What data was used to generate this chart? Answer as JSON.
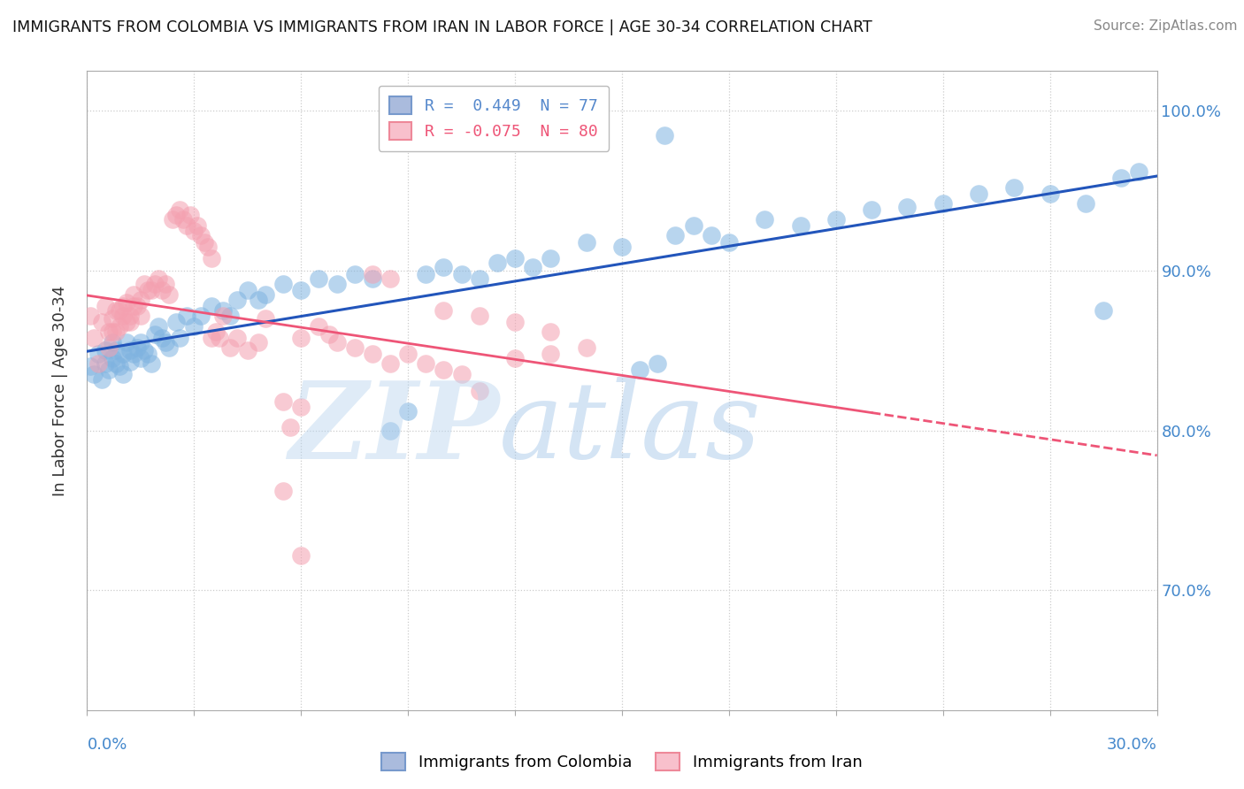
{
  "title": "IMMIGRANTS FROM COLOMBIA VS IMMIGRANTS FROM IRAN IN LABOR FORCE | AGE 30-34 CORRELATION CHART",
  "source": "Source: ZipAtlas.com",
  "ylabel": "In Labor Force | Age 30-34",
  "xmin": 0.0,
  "xmax": 0.3,
  "ymin": 0.625,
  "ymax": 1.025,
  "right_yticks": [
    0.7,
    0.8,
    0.9,
    1.0
  ],
  "right_yticklabels": [
    "70.0%",
    "80.0%",
    "90.0%",
    "100.0%"
  ],
  "colombia_color": "#7fb3e0",
  "iran_color": "#f4a0b0",
  "trendline_colombia_color": "#2255bb",
  "trendline_iran_color": "#ee5577",
  "colombia_scatter": [
    [
      0.001,
      0.84
    ],
    [
      0.002,
      0.835
    ],
    [
      0.003,
      0.848
    ],
    [
      0.004,
      0.832
    ],
    [
      0.005,
      0.85
    ],
    [
      0.005,
      0.842
    ],
    [
      0.006,
      0.838
    ],
    [
      0.007,
      0.855
    ],
    [
      0.007,
      0.845
    ],
    [
      0.008,
      0.85
    ],
    [
      0.008,
      0.842
    ],
    [
      0.009,
      0.84
    ],
    [
      0.01,
      0.835
    ],
    [
      0.01,
      0.848
    ],
    [
      0.011,
      0.855
    ],
    [
      0.012,
      0.85
    ],
    [
      0.012,
      0.843
    ],
    [
      0.013,
      0.848
    ],
    [
      0.014,
      0.852
    ],
    [
      0.015,
      0.855
    ],
    [
      0.015,
      0.845
    ],
    [
      0.016,
      0.85
    ],
    [
      0.017,
      0.848
    ],
    [
      0.018,
      0.842
    ],
    [
      0.019,
      0.86
    ],
    [
      0.02,
      0.865
    ],
    [
      0.021,
      0.858
    ],
    [
      0.022,
      0.855
    ],
    [
      0.023,
      0.852
    ],
    [
      0.025,
      0.868
    ],
    [
      0.026,
      0.858
    ],
    [
      0.028,
      0.872
    ],
    [
      0.03,
      0.865
    ],
    [
      0.032,
      0.872
    ],
    [
      0.035,
      0.878
    ],
    [
      0.038,
      0.875
    ],
    [
      0.04,
      0.872
    ],
    [
      0.042,
      0.882
    ],
    [
      0.045,
      0.888
    ],
    [
      0.048,
      0.882
    ],
    [
      0.05,
      0.885
    ],
    [
      0.055,
      0.892
    ],
    [
      0.06,
      0.888
    ],
    [
      0.065,
      0.895
    ],
    [
      0.07,
      0.892
    ],
    [
      0.075,
      0.898
    ],
    [
      0.08,
      0.895
    ],
    [
      0.085,
      0.8
    ],
    [
      0.09,
      0.812
    ],
    [
      0.095,
      0.898
    ],
    [
      0.1,
      0.902
    ],
    [
      0.105,
      0.898
    ],
    [
      0.11,
      0.895
    ],
    [
      0.115,
      0.905
    ],
    [
      0.12,
      0.908
    ],
    [
      0.125,
      0.902
    ],
    [
      0.13,
      0.908
    ],
    [
      0.14,
      0.918
    ],
    [
      0.15,
      0.915
    ],
    [
      0.155,
      0.838
    ],
    [
      0.16,
      0.842
    ],
    [
      0.165,
      0.922
    ],
    [
      0.17,
      0.928
    ],
    [
      0.175,
      0.922
    ],
    [
      0.18,
      0.918
    ],
    [
      0.19,
      0.932
    ],
    [
      0.2,
      0.928
    ],
    [
      0.21,
      0.932
    ],
    [
      0.22,
      0.938
    ],
    [
      0.23,
      0.94
    ],
    [
      0.24,
      0.942
    ],
    [
      0.25,
      0.948
    ],
    [
      0.26,
      0.952
    ],
    [
      0.27,
      0.948
    ],
    [
      0.28,
      0.942
    ],
    [
      0.162,
      0.985
    ],
    [
      0.285,
      0.875
    ],
    [
      0.29,
      0.958
    ],
    [
      0.295,
      0.962
    ]
  ],
  "iran_scatter": [
    [
      0.001,
      0.872
    ],
    [
      0.002,
      0.858
    ],
    [
      0.003,
      0.842
    ],
    [
      0.004,
      0.868
    ],
    [
      0.005,
      0.878
    ],
    [
      0.006,
      0.862
    ],
    [
      0.006,
      0.852
    ],
    [
      0.007,
      0.87
    ],
    [
      0.007,
      0.862
    ],
    [
      0.008,
      0.875
    ],
    [
      0.008,
      0.862
    ],
    [
      0.009,
      0.875
    ],
    [
      0.009,
      0.865
    ],
    [
      0.01,
      0.872
    ],
    [
      0.01,
      0.878
    ],
    [
      0.011,
      0.868
    ],
    [
      0.011,
      0.88
    ],
    [
      0.012,
      0.872
    ],
    [
      0.012,
      0.868
    ],
    [
      0.013,
      0.878
    ],
    [
      0.013,
      0.885
    ],
    [
      0.014,
      0.878
    ],
    [
      0.015,
      0.882
    ],
    [
      0.015,
      0.872
    ],
    [
      0.016,
      0.892
    ],
    [
      0.017,
      0.888
    ],
    [
      0.018,
      0.888
    ],
    [
      0.019,
      0.892
    ],
    [
      0.02,
      0.895
    ],
    [
      0.021,
      0.888
    ],
    [
      0.022,
      0.892
    ],
    [
      0.023,
      0.885
    ],
    [
      0.024,
      0.932
    ],
    [
      0.025,
      0.935
    ],
    [
      0.026,
      0.938
    ],
    [
      0.027,
      0.932
    ],
    [
      0.028,
      0.928
    ],
    [
      0.029,
      0.935
    ],
    [
      0.03,
      0.925
    ],
    [
      0.031,
      0.928
    ],
    [
      0.032,
      0.922
    ],
    [
      0.033,
      0.918
    ],
    [
      0.034,
      0.915
    ],
    [
      0.035,
      0.908
    ],
    [
      0.035,
      0.858
    ],
    [
      0.036,
      0.862
    ],
    [
      0.037,
      0.858
    ],
    [
      0.038,
      0.872
    ],
    [
      0.04,
      0.852
    ],
    [
      0.042,
      0.858
    ],
    [
      0.045,
      0.85
    ],
    [
      0.048,
      0.855
    ],
    [
      0.05,
      0.87
    ],
    [
      0.055,
      0.818
    ],
    [
      0.057,
      0.802
    ],
    [
      0.06,
      0.815
    ],
    [
      0.055,
      0.762
    ],
    [
      0.06,
      0.722
    ],
    [
      0.06,
      0.858
    ],
    [
      0.065,
      0.865
    ],
    [
      0.068,
      0.86
    ],
    [
      0.07,
      0.855
    ],
    [
      0.075,
      0.852
    ],
    [
      0.08,
      0.848
    ],
    [
      0.085,
      0.842
    ],
    [
      0.09,
      0.848
    ],
    [
      0.095,
      0.842
    ],
    [
      0.1,
      0.838
    ],
    [
      0.105,
      0.835
    ],
    [
      0.11,
      0.825
    ],
    [
      0.12,
      0.845
    ],
    [
      0.13,
      0.848
    ],
    [
      0.14,
      0.852
    ],
    [
      0.1,
      0.875
    ],
    [
      0.11,
      0.872
    ],
    [
      0.12,
      0.868
    ],
    [
      0.13,
      0.862
    ],
    [
      0.08,
      0.898
    ],
    [
      0.085,
      0.895
    ]
  ],
  "background_color": "#ffffff",
  "grid_color": "#cccccc"
}
